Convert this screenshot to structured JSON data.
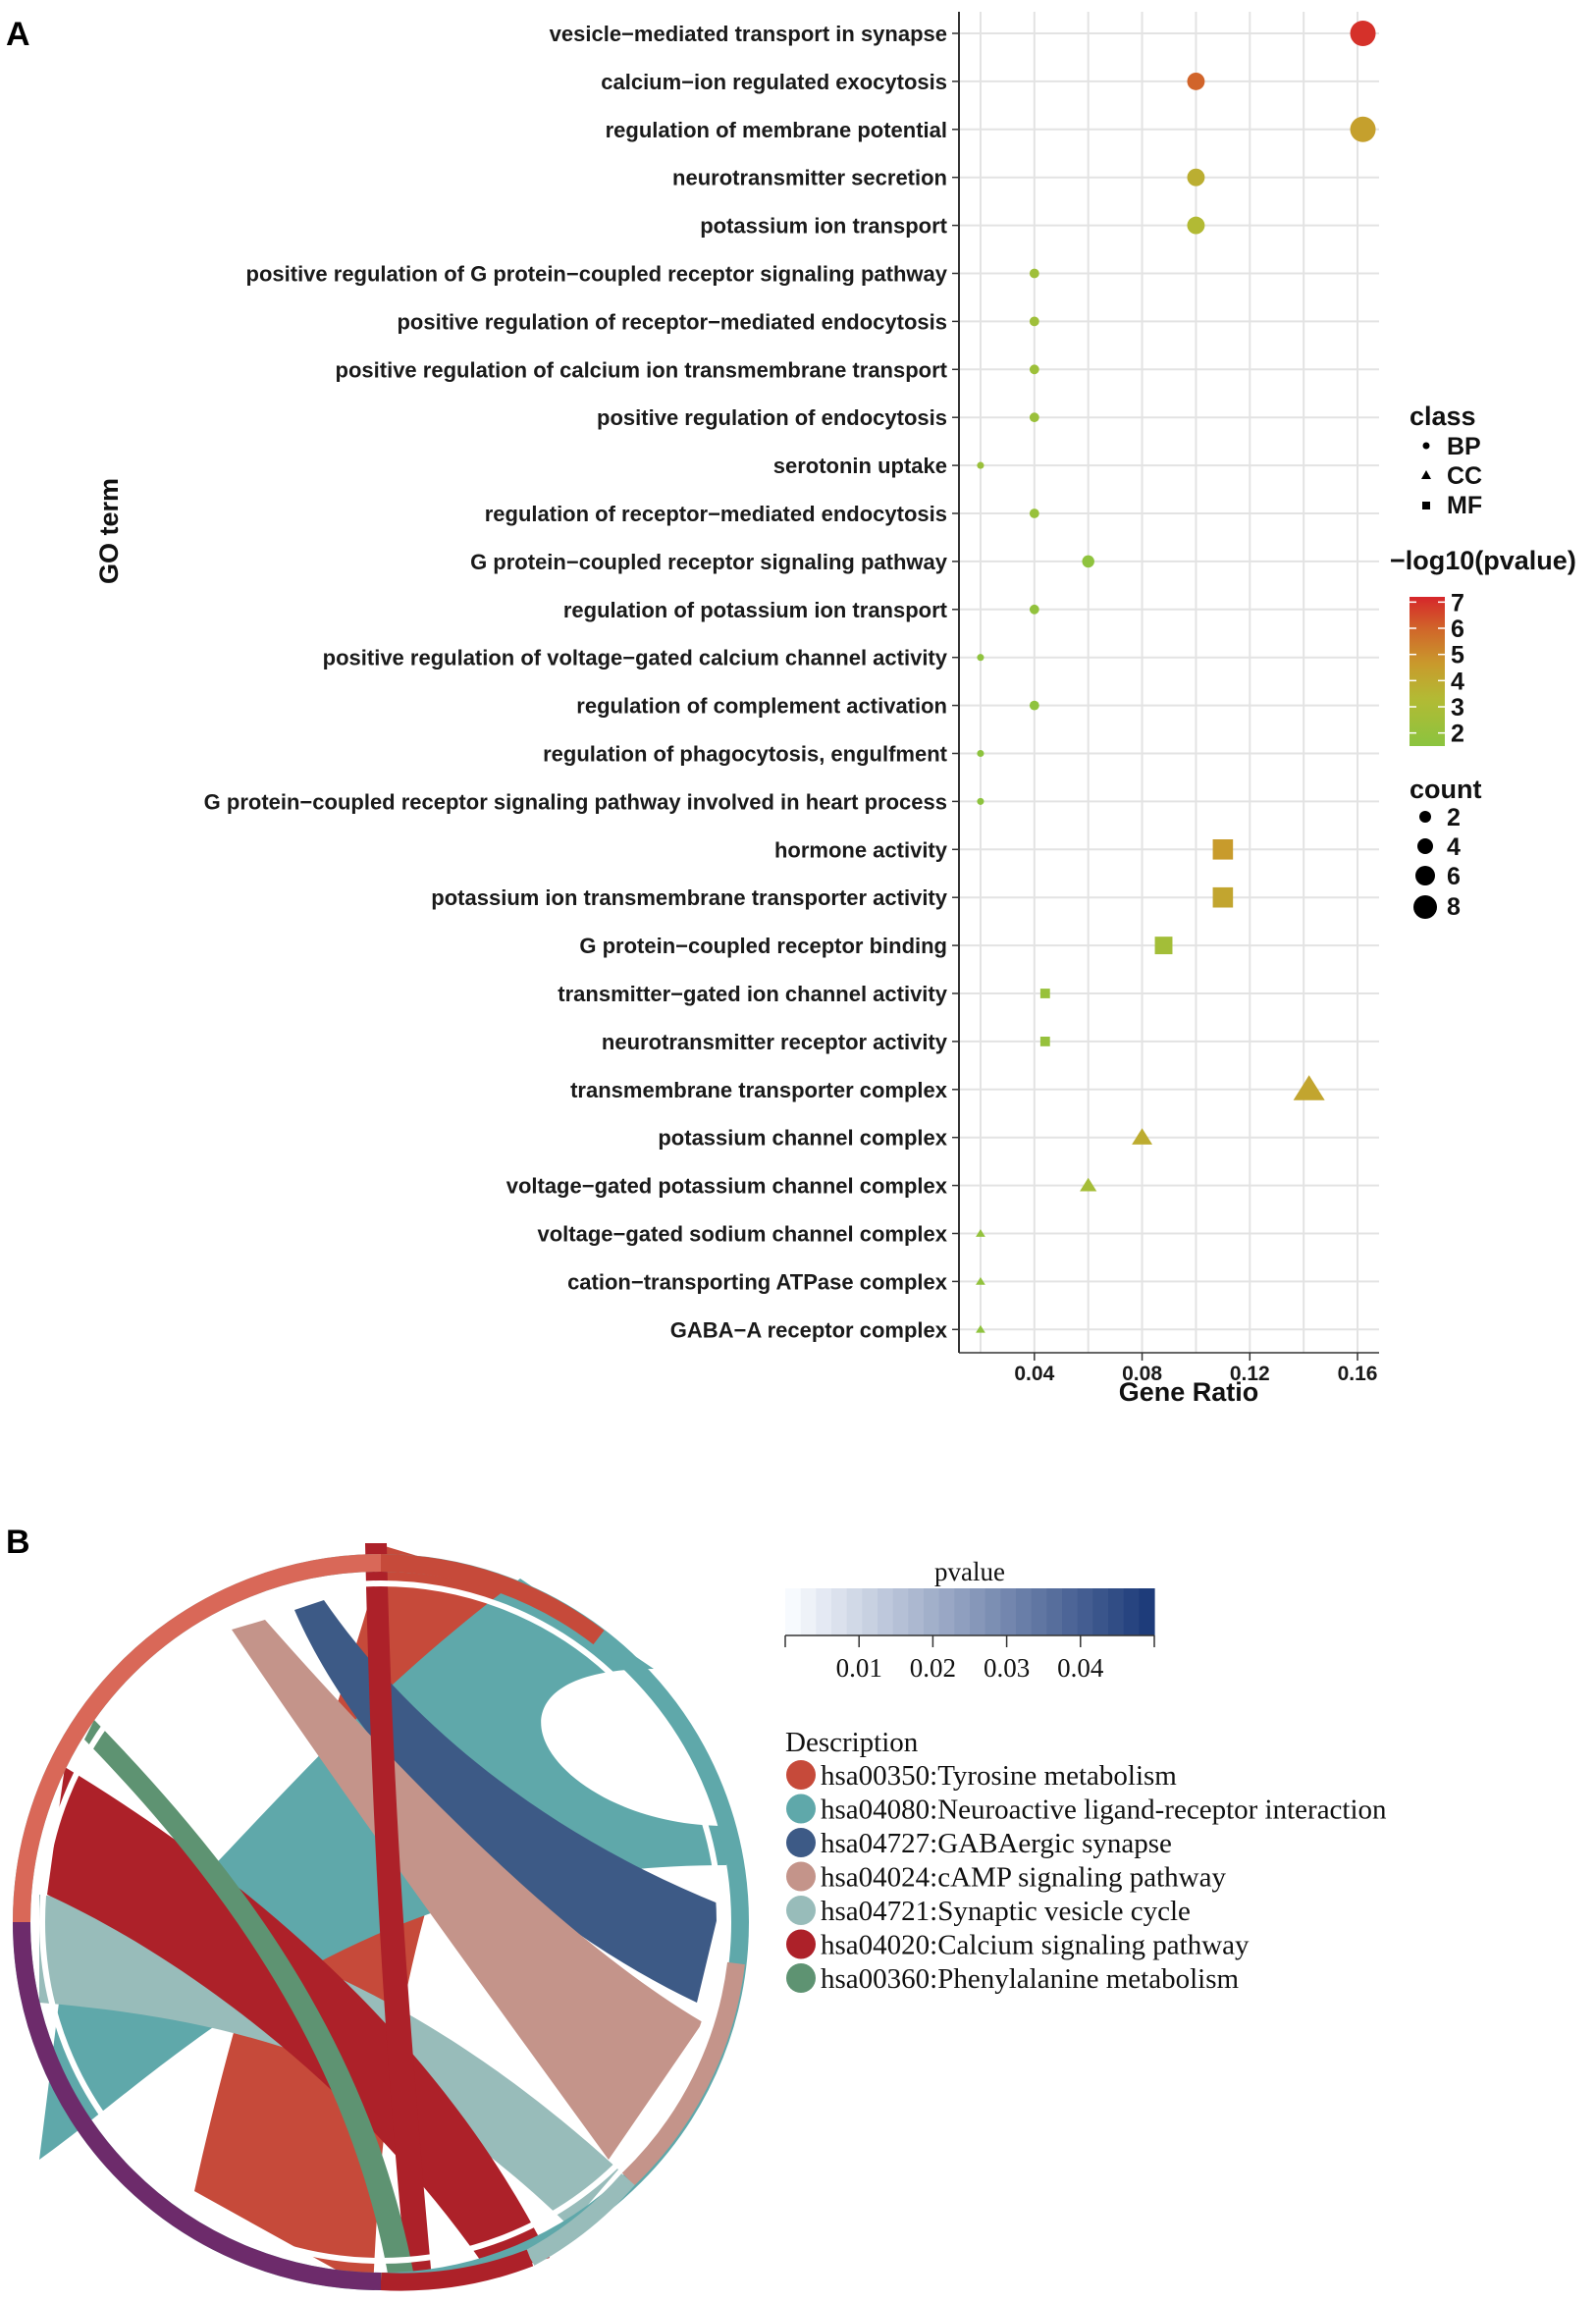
{
  "panel_a_label": "A",
  "panel_b_label": "B",
  "chart_data": [
    {
      "type": "scatter",
      "title": "",
      "xlabel": "Gene Ratio",
      "ylabel": "GO term",
      "xlim": [
        0.012,
        0.168
      ],
      "xticks": [
        0.04,
        0.08,
        0.12,
        0.16
      ],
      "xtick_labels": [
        "0.04",
        "0.08",
        "0.12",
        "0.16"
      ],
      "grid": true,
      "terms": [
        {
          "name": "vesicle−mediated transport in synapse",
          "ratio": 0.162,
          "pvalue": 7.0,
          "count": 8,
          "class": "BP"
        },
        {
          "name": "calcium−ion regulated exocytosis",
          "ratio": 0.1,
          "pvalue": 6.0,
          "count": 5,
          "class": "BP"
        },
        {
          "name": "regulation of membrane potential",
          "ratio": 0.162,
          "pvalue": 4.4,
          "count": 8,
          "class": "BP"
        },
        {
          "name": "neurotransmitter secretion",
          "ratio": 0.1,
          "pvalue": 3.8,
          "count": 5,
          "class": "BP"
        },
        {
          "name": "potassium ion transport",
          "ratio": 0.1,
          "pvalue": 3.3,
          "count": 5,
          "class": "BP"
        },
        {
          "name": "positive regulation of G protein−coupled receptor signaling pathway",
          "ratio": 0.04,
          "pvalue": 2.4,
          "count": 2,
          "class": "BP"
        },
        {
          "name": "positive regulation of receptor−mediated endocytosis",
          "ratio": 0.04,
          "pvalue": 2.4,
          "count": 2,
          "class": "BP"
        },
        {
          "name": "positive regulation of calcium ion transmembrane transport",
          "ratio": 0.04,
          "pvalue": 2.3,
          "count": 2,
          "class": "BP"
        },
        {
          "name": "positive regulation of endocytosis",
          "ratio": 0.04,
          "pvalue": 2.2,
          "count": 2,
          "class": "BP"
        },
        {
          "name": "serotonin uptake",
          "ratio": 0.02,
          "pvalue": 2.2,
          "count": 1,
          "class": "BP"
        },
        {
          "name": "regulation of receptor−mediated endocytosis",
          "ratio": 0.04,
          "pvalue": 2.1,
          "count": 2,
          "class": "BP"
        },
        {
          "name": "G protein−coupled receptor signaling pathway",
          "ratio": 0.06,
          "pvalue": 1.7,
          "count": 3,
          "class": "BP"
        },
        {
          "name": "regulation of potassium ion transport",
          "ratio": 0.04,
          "pvalue": 1.8,
          "count": 2,
          "class": "BP"
        },
        {
          "name": "positive regulation of voltage−gated calcium channel activity",
          "ratio": 0.02,
          "pvalue": 1.7,
          "count": 1,
          "class": "BP"
        },
        {
          "name": "regulation of complement activation",
          "ratio": 0.04,
          "pvalue": 1.7,
          "count": 2,
          "class": "BP"
        },
        {
          "name": "regulation of phagocytosis, engulfment",
          "ratio": 0.02,
          "pvalue": 1.6,
          "count": 1,
          "class": "BP"
        },
        {
          "name": "G protein−coupled receptor signaling pathway involved in heart process",
          "ratio": 0.02,
          "pvalue": 1.6,
          "count": 1,
          "class": "BP"
        },
        {
          "name": "hormone activity",
          "ratio": 0.11,
          "pvalue": 4.6,
          "count": 6,
          "class": "MF"
        },
        {
          "name": "potassium ion transmembrane transporter activity",
          "ratio": 0.11,
          "pvalue": 4.2,
          "count": 6,
          "class": "MF"
        },
        {
          "name": "G protein−coupled receptor binding",
          "ratio": 0.088,
          "pvalue": 2.6,
          "count": 5,
          "class": "MF"
        },
        {
          "name": "transmitter−gated ion channel activity",
          "ratio": 0.044,
          "pvalue": 2.1,
          "count": 2,
          "class": "MF"
        },
        {
          "name": "neurotransmitter receptor activity",
          "ratio": 0.044,
          "pvalue": 2.0,
          "count": 2,
          "class": "MF"
        },
        {
          "name": "transmembrane transporter complex",
          "ratio": 0.142,
          "pvalue": 4.2,
          "count": 7,
          "class": "CC"
        },
        {
          "name": "potassium channel complex",
          "ratio": 0.08,
          "pvalue": 3.9,
          "count": 4,
          "class": "CC"
        },
        {
          "name": "voltage−gated potassium channel complex",
          "ratio": 0.06,
          "pvalue": 2.7,
          "count": 3,
          "class": "CC"
        },
        {
          "name": "voltage−gated sodium channel complex",
          "ratio": 0.02,
          "pvalue": 1.9,
          "count": 1,
          "class": "CC"
        },
        {
          "name": "cation−transporting ATPase complex",
          "ratio": 0.02,
          "pvalue": 1.8,
          "count": 1,
          "class": "CC"
        },
        {
          "name": "GABA−A receptor complex",
          "ratio": 0.02,
          "pvalue": 1.7,
          "count": 1,
          "class": "CC"
        }
      ],
      "legend_class": {
        "title": "class",
        "items": [
          "BP",
          "CC",
          "MF"
        ]
      },
      "legend_color": {
        "title": "−log10(pvalue)",
        "ticks": [
          "7",
          "6",
          "5",
          "4",
          "3",
          "2"
        ],
        "range": [
          1.5,
          7.2
        ]
      },
      "legend_count": {
        "title": "count",
        "items": [
          "2",
          "4",
          "6",
          "8"
        ]
      }
    },
    {
      "type": "chord",
      "legend_pvalue": {
        "title": "pvalue",
        "ticks": [
          "0.01",
          "0.02",
          "0.03",
          "0.04"
        ],
        "range": [
          0.0,
          0.05
        ]
      },
      "legend_description": {
        "title": "Description",
        "items": [
          {
            "label": "hsa00350:Tyrosine metabolism",
            "color": "#c64a3a"
          },
          {
            "label": "hsa04080:Neuroactive ligand-receptor interaction",
            "color": "#5fa8aa"
          },
          {
            "label": "hsa04727:GABAergic synapse",
            "color": "#3d5a86"
          },
          {
            "label": "hsa04024:cAMP signaling pathway",
            "color": "#c4948a"
          },
          {
            "label": "hsa04721:Synaptic vesicle cycle",
            "color": "#98bcba"
          },
          {
            "label": "hsa04020:Calcium signaling pathway",
            "color": "#ad2129"
          },
          {
            "label": "hsa00360:Phenylalanine metabolism",
            "color": "#5e9372"
          }
        ]
      }
    }
  ]
}
